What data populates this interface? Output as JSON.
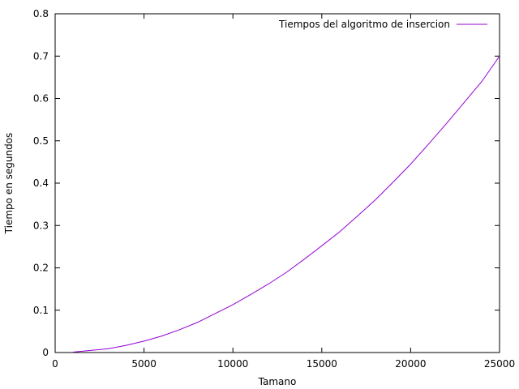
{
  "chart_data": {
    "type": "line",
    "title": "",
    "xlabel": "Tamano",
    "ylabel": "Tiempo en segundos",
    "xlim": [
      0,
      25000
    ],
    "ylim": [
      0,
      0.8
    ],
    "xticks": [
      0,
      5000,
      10000,
      15000,
      20000,
      25000
    ],
    "yticks": [
      0,
      0.1,
      0.2,
      0.3,
      0.4,
      0.5,
      0.6,
      0.7,
      0.8
    ],
    "grid": false,
    "legend_position": "top-right",
    "series": [
      {
        "name": "Tiempos del algoritmo de insercion",
        "color": "#9400d3",
        "x": [
          1000,
          2000,
          3000,
          4000,
          5000,
          6000,
          7000,
          8000,
          9000,
          10000,
          11000,
          12000,
          13000,
          14000,
          15000,
          16000,
          17000,
          18000,
          19000,
          20000,
          21000,
          22000,
          23000,
          24000,
          25000
        ],
        "y": [
          0.001,
          0.005,
          0.009,
          0.017,
          0.027,
          0.039,
          0.054,
          0.071,
          0.092,
          0.113,
          0.137,
          0.162,
          0.189,
          0.22,
          0.252,
          0.285,
          0.322,
          0.36,
          0.402,
          0.445,
          0.492,
          0.54,
          0.59,
          0.64,
          0.7
        ]
      }
    ]
  }
}
